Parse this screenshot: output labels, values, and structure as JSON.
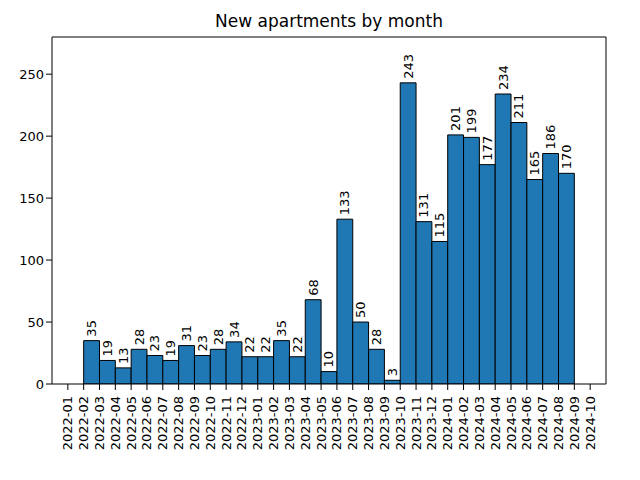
{
  "chart_data": {
    "type": "histogram",
    "title": "New apartments by month",
    "bins": [
      "2022-02",
      "2022-03",
      "2022-04",
      "2022-05",
      "2022-06",
      "2022-07",
      "2022-08",
      "2022-09",
      "2022-10",
      "2022-11",
      "2022-12",
      "2023-01",
      "2023-02",
      "2023-03",
      "2023-04",
      "2023-05",
      "2023-06",
      "2023-07",
      "2023-08",
      "2023-09",
      "2023-10",
      "2023-11",
      "2023-12",
      "2024-01",
      "2024-02",
      "2024-03",
      "2024-04",
      "2024-05",
      "2024-06",
      "2024-07",
      "2024-08",
      "2024-09"
    ],
    "counts": [
      35,
      19,
      13,
      28,
      23,
      19,
      31,
      23,
      28,
      34,
      22,
      22,
      35,
      22,
      68,
      10,
      133,
      50,
      28,
      3,
      243,
      131,
      115,
      201,
      199,
      177,
      234,
      211,
      165,
      186,
      170
    ],
    "color": "#1f77b4",
    "xlim": [
      "2021-12",
      "2024-11"
    ],
    "xticks": [
      "2022-01",
      "2022-02",
      "2022-03",
      "2022-04",
      "2022-05",
      "2022-06",
      "2022-07",
      "2022-08",
      "2022-09",
      "2022-10",
      "2022-11",
      "2022-12",
      "2023-01",
      "2023-02",
      "2023-03",
      "2023-04",
      "2023-05",
      "2023-06",
      "2023-07",
      "2023-08",
      "2023-09",
      "2023-10",
      "2023-11",
      "2023-12",
      "2024-01",
      "2024-02",
      "2024-03",
      "2024-04",
      "2024-05",
      "2024-06",
      "2024-07",
      "2024-08",
      "2024-09",
      "2024-10"
    ],
    "ylim": [
      0,
      280
    ],
    "yticks": [
      0,
      50,
      100,
      150,
      200,
      250
    ],
    "grid": false,
    "data_labels": true
  }
}
